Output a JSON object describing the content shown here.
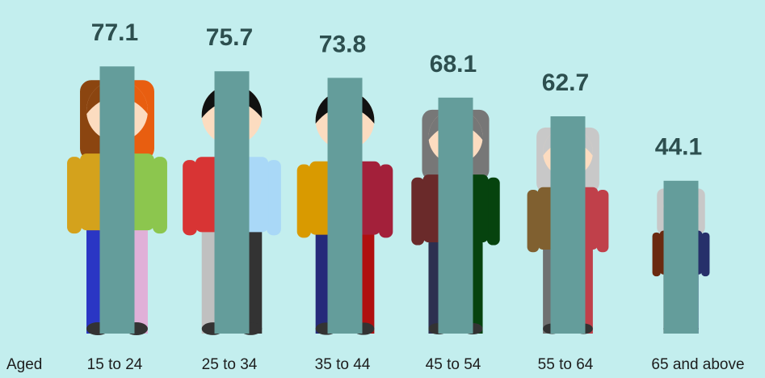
{
  "chart_data": {
    "type": "bar",
    "xlabel": "Aged",
    "categories": [
      "15 to 24",
      "25 to 34",
      "35 to 44",
      "45 to 54",
      "55 to 64",
      "65 and above"
    ],
    "values": [
      77.1,
      75.7,
      73.8,
      68.1,
      62.7,
      44.1
    ],
    "color": "#649d9b"
  }
}
